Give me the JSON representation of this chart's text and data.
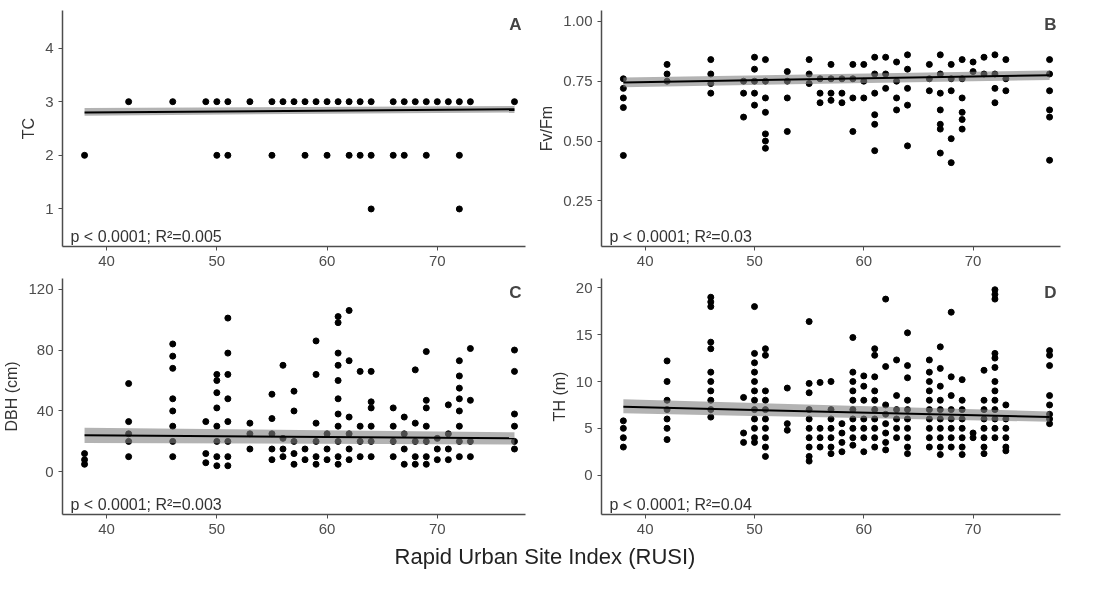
{
  "chart_data": [
    {
      "type": "scatter",
      "title": "A",
      "ylabel": "TC",
      "annotations": [
        "p < 0.0001; R²=0.005"
      ],
      "marker": "circle",
      "xlim": [
        36,
        78
      ],
      "xticks": [
        40,
        50,
        60,
        70
      ],
      "ylim": [
        0.3,
        4.7
      ],
      "yticks": [
        1,
        2,
        3,
        4
      ],
      "series": [
        {
          "color": "#000000",
          "x": [
            42,
            46,
            49,
            50,
            51,
            53,
            55,
            56,
            57,
            58,
            59,
            60,
            61,
            62,
            63,
            64,
            66,
            67,
            68,
            69,
            70,
            71,
            72,
            73,
            77,
            38,
            50,
            51,
            55,
            58,
            60,
            62,
            63,
            64,
            66,
            67,
            69,
            72,
            64,
            72
          ],
          "values": [
            3,
            3,
            3,
            3,
            3,
            3,
            3,
            3,
            3,
            3,
            3,
            3,
            3,
            3,
            3,
            3,
            3,
            3,
            3,
            3,
            3,
            3,
            3,
            3,
            3,
            2,
            2,
            2,
            2,
            2,
            2,
            2,
            2,
            2,
            2,
            2,
            2,
            2,
            1,
            1
          ]
        },
        {
          "type": "line",
          "color": "#000000",
          "x": [
            38,
            77
          ],
          "marker": "none",
          "values": [
            2.8,
            2.86
          ],
          "lower": [
            2.74,
            2.8
          ],
          "upper": [
            2.88,
            2.92
          ]
        }
      ]
    },
    {
      "type": "scatter",
      "title": "B",
      "ylabel": "Fv/Fm",
      "annotations": [
        "p < 0.0001; R²=0.03"
      ],
      "marker": "circle",
      "xlim": [
        36,
        78
      ],
      "xticks": [
        40,
        50,
        60,
        70
      ],
      "ylim": [
        0.06,
        1.045
      ],
      "yticks": [
        0.25,
        {
          "value": 0.5,
          "label": "0.50"
        },
        0.75,
        {
          "value": 1,
          "label": "1.00"
        }
      ],
      "series": [
        {
          "color": "#000000",
          "x": [
            38,
            38,
            38,
            38,
            38,
            42,
            42,
            42,
            46,
            46,
            46,
            46,
            49,
            49,
            49,
            50,
            50,
            50,
            50,
            50,
            51,
            51,
            51,
            51,
            51,
            51,
            51,
            53,
            53,
            53,
            53,
            55,
            55,
            55,
            56,
            56,
            56,
            57,
            57,
            57,
            57,
            58,
            58,
            58,
            59,
            59,
            59,
            59,
            60,
            60,
            60,
            61,
            61,
            61,
            61,
            61,
            61,
            62,
            62,
            62,
            63,
            63,
            63,
            63,
            64,
            64,
            64,
            64,
            64,
            66,
            66,
            66,
            67,
            67,
            67,
            67,
            67,
            67,
            67,
            68,
            68,
            68,
            68,
            68,
            69,
            69,
            69,
            69,
            69,
            69,
            70,
            70,
            71,
            71,
            72,
            72,
            72,
            72,
            73,
            73,
            73,
            77,
            77,
            77,
            77,
            77,
            77
          ],
          "values": [
            0.76,
            0.72,
            0.68,
            0.64,
            0.44,
            0.82,
            0.78,
            0.75,
            0.84,
            0.78,
            0.74,
            0.7,
            0.75,
            0.7,
            0.6,
            0.85,
            0.8,
            0.75,
            0.7,
            0.65,
            0.84,
            0.75,
            0.68,
            0.62,
            0.53,
            0.5,
            0.47,
            0.79,
            0.75,
            0.68,
            0.54,
            0.84,
            0.78,
            0.74,
            0.76,
            0.7,
            0.66,
            0.82,
            0.76,
            0.7,
            0.67,
            0.76,
            0.7,
            0.66,
            0.82,
            0.76,
            0.68,
            0.54,
            0.82,
            0.75,
            0.68,
            0.85,
            0.78,
            0.7,
            0.61,
            0.57,
            0.46,
            0.85,
            0.78,
            0.72,
            0.83,
            0.75,
            0.68,
            0.63,
            0.86,
            0.8,
            0.72,
            0.65,
            0.48,
            0.82,
            0.76,
            0.71,
            0.86,
            0.78,
            0.7,
            0.63,
            0.57,
            0.55,
            0.45,
            0.82,
            0.76,
            0.71,
            0.51,
            0.41,
            0.84,
            0.76,
            0.68,
            0.62,
            0.59,
            0.55,
            0.83,
            0.79,
            0.85,
            0.78,
            0.86,
            0.78,
            0.72,
            0.66,
            0.84,
            0.76,
            0.71,
            0.84,
            0.78,
            0.71,
            0.63,
            0.6,
            0.42
          ]
        },
        {
          "type": "line",
          "color": "#000000",
          "x": [
            38,
            77
          ],
          "marker": "none",
          "values": [
            0.745,
            0.775
          ],
          "lower": [
            0.725,
            0.755
          ],
          "upper": [
            0.765,
            0.795
          ]
        }
      ]
    },
    {
      "type": "scatter",
      "title": "C",
      "ylabel": "DBH (cm)",
      "xlabel": "Rapid Urban Site Index (RUSI)",
      "annotations": [
        "p < 0.0001; R²=0.003"
      ],
      "marker": "circle",
      "xlim": [
        36,
        78
      ],
      "xticks": [
        40,
        50,
        60,
        70
      ],
      "ylim": [
        -28,
        127
      ],
      "yticks": [
        0,
        40,
        80,
        120
      ],
      "series": [
        {
          "color": "#000000",
          "x": [
            38,
            38,
            38,
            42,
            42,
            42,
            42,
            42,
            46,
            46,
            46,
            46,
            46,
            46,
            46,
            46,
            49,
            49,
            49,
            50,
            50,
            50,
            50,
            50,
            50,
            50,
            50,
            51,
            51,
            51,
            51,
            51,
            51,
            51,
            51,
            53,
            53,
            53,
            55,
            55,
            55,
            55,
            55,
            56,
            56,
            56,
            56,
            57,
            57,
            57,
            57,
            57,
            58,
            58,
            59,
            59,
            59,
            59,
            59,
            59,
            60,
            60,
            60,
            61,
            61,
            61,
            61,
            61,
            61,
            61,
            61,
            61,
            61,
            61,
            62,
            62,
            62,
            62,
            62,
            62,
            63,
            63,
            63,
            63,
            64,
            64,
            64,
            64,
            64,
            64,
            66,
            66,
            66,
            66,
            67,
            67,
            67,
            67,
            68,
            68,
            68,
            68,
            68,
            69,
            69,
            69,
            69,
            69,
            69,
            69,
            70,
            70,
            70,
            71,
            71,
            71,
            71,
            72,
            72,
            72,
            72,
            72,
            72,
            72,
            72,
            73,
            73,
            73,
            73,
            77,
            77,
            77,
            77,
            77,
            77
          ],
          "values": [
            12,
            8,
            5,
            58,
            33,
            25,
            20,
            10,
            84,
            76,
            68,
            48,
            40,
            30,
            20,
            10,
            33,
            12,
            6,
            64,
            60,
            52,
            42,
            30,
            20,
            10,
            4,
            101,
            78,
            64,
            48,
            33,
            20,
            10,
            4,
            32,
            25,
            15,
            51,
            35,
            25,
            15,
            8,
            70,
            22,
            15,
            10,
            53,
            40,
            20,
            12,
            5,
            15,
            8,
            86,
            64,
            32,
            20,
            10,
            5,
            25,
            15,
            8,
            102,
            98,
            78,
            70,
            60,
            48,
            38,
            30,
            20,
            10,
            5,
            106,
            73,
            36,
            25,
            15,
            8,
            66,
            30,
            20,
            10,
            66,
            46,
            42,
            30,
            20,
            10,
            42,
            30,
            20,
            10,
            36,
            25,
            15,
            5,
            67,
            32,
            20,
            10,
            5,
            79,
            47,
            42,
            30,
            20,
            10,
            5,
            22,
            15,
            8,
            44,
            25,
            15,
            8,
            73,
            63,
            55,
            48,
            40,
            30,
            20,
            10,
            81,
            47,
            20,
            10,
            80,
            66,
            38,
            30,
            20,
            15
          ]
        },
        {
          "type": "line",
          "color": "#000000",
          "x": [
            38,
            77
          ],
          "marker": "none",
          "values": [
            24,
            22
          ],
          "lower": [
            19,
            18
          ],
          "upper": [
            29,
            26
          ]
        }
      ]
    },
    {
      "type": "scatter",
      "title": "D",
      "ylabel": "TH (m)",
      "annotations": [
        "p < 0.0001; R²=0.04"
      ],
      "marker": "circle",
      "xlim": [
        36,
        78
      ],
      "xticks": [
        40,
        50,
        60,
        70
      ],
      "ylim": [
        -4.2,
        21
      ],
      "yticks": [
        0,
        5,
        10,
        15,
        20
      ],
      "series": [
        {
          "color": "#000000",
          "x": [
            38,
            38,
            38,
            38,
            42,
            42,
            42,
            42,
            42,
            42,
            42,
            46,
            46,
            46,
            46,
            46,
            46,
            46,
            46,
            46,
            46,
            46,
            49,
            49,
            49,
            50,
            50,
            50,
            50,
            50,
            50,
            50,
            50,
            50,
            50,
            50,
            50,
            51,
            51,
            51,
            51,
            51,
            51,
            51,
            51,
            51,
            51,
            53,
            53,
            53,
            55,
            55,
            55,
            55,
            55,
            55,
            55,
            55,
            55,
            55,
            56,
            56,
            56,
            56,
            57,
            57,
            57,
            57,
            57,
            57,
            57,
            58,
            58,
            58,
            58,
            59,
            59,
            59,
            59,
            59,
            59,
            59,
            59,
            59,
            59,
            60,
            60,
            60,
            60,
            60,
            60,
            60,
            61,
            61,
            61,
            61,
            61,
            61,
            61,
            61,
            61,
            61,
            62,
            62,
            62,
            62,
            62,
            62,
            62,
            62,
            63,
            63,
            63,
            63,
            63,
            63,
            64,
            64,
            64,
            64,
            64,
            64,
            64,
            64,
            64,
            64,
            66,
            66,
            66,
            66,
            66,
            66,
            66,
            66,
            66,
            66,
            67,
            67,
            67,
            67,
            67,
            67,
            67,
            67,
            67,
            67,
            68,
            68,
            68,
            68,
            68,
            68,
            68,
            68,
            69,
            69,
            69,
            69,
            69,
            69,
            69,
            69,
            70,
            70,
            71,
            71,
            71,
            71,
            71,
            71,
            71,
            71,
            72,
            72,
            72,
            72,
            72,
            72,
            72,
            72,
            72,
            72,
            72,
            72,
            72,
            73,
            73,
            73,
            73,
            73,
            73,
            77,
            77,
            77,
            77,
            77,
            77,
            77,
            77
          ],
          "values": [
            5.8,
            5,
            4,
            3,
            12.2,
            10,
            8,
            7,
            6,
            5,
            3.8,
            19,
            18.5,
            18,
            14.2,
            13.5,
            11,
            10,
            9,
            8,
            7,
            6.2,
            8.3,
            4.5,
            3.5,
            18,
            13,
            12,
            11,
            10,
            9,
            8,
            7,
            6,
            5,
            4,
            3.5,
            13.5,
            12.8,
            9,
            8,
            7,
            6,
            5,
            4,
            3,
            2,
            9.3,
            5.5,
            4.8,
            16.4,
            9.8,
            8.8,
            7,
            6,
            5,
            4,
            3,
            2,
            1.5,
            9.9,
            5,
            4,
            3,
            10,
            7,
            6,
            5,
            4,
            3,
            2.3,
            5.5,
            4.5,
            3.5,
            2.5,
            14.7,
            11,
            10,
            9,
            8,
            7,
            6,
            5,
            4,
            3.2,
            10.6,
            9.5,
            8,
            6,
            5,
            4,
            2.5,
            13.5,
            12.8,
            10.5,
            9,
            8,
            7,
            6,
            5,
            4,
            3,
            18.8,
            11.6,
            7.5,
            6.5,
            5.5,
            4.5,
            3.5,
            2.7,
            12.3,
            8.5,
            7,
            6,
            5,
            4,
            15.2,
            11.7,
            10.4,
            8,
            7,
            6,
            5,
            4,
            3,
            2.3,
            12.3,
            11,
            10,
            9,
            8,
            7,
            6,
            5,
            4,
            3,
            13.7,
            11.4,
            9.5,
            8,
            7,
            6,
            5,
            4,
            3,
            2.2,
            17.4,
            10.5,
            8.5,
            7,
            6,
            5,
            4,
            3,
            10.2,
            8,
            7,
            6,
            5,
            4,
            3,
            2.2,
            4.5,
            4,
            11.2,
            8,
            7,
            6,
            5,
            4,
            3,
            2.3,
            19.8,
            19.3,
            18.8,
            13,
            12.5,
            11.5,
            10,
            9,
            8,
            7,
            6,
            5,
            4,
            7.5,
            6,
            5,
            4,
            3,
            2.6,
            13.3,
            12.8,
            11.7,
            8.5,
            7.5,
            6.5,
            6,
            5.5
          ]
        },
        {
          "type": "line",
          "color": "#000000",
          "x": [
            38,
            77
          ],
          "marker": "none",
          "values": [
            7.3,
            6.2
          ],
          "lower": [
            6.6,
            5.7
          ],
          "upper": [
            8.1,
            6.8
          ]
        }
      ]
    }
  ]
}
